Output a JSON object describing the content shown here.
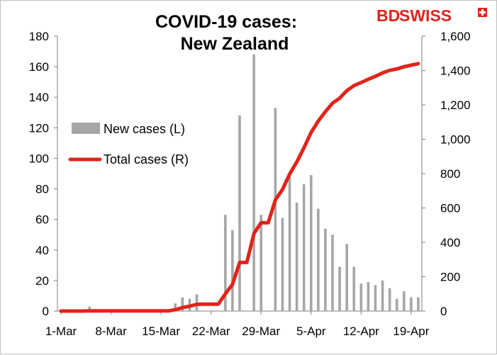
{
  "title_line1": "COVID-19 cases:",
  "title_line2": "New Zealand",
  "logo": {
    "bd": "BD",
    "swiss": "SWISS",
    "brand_color": "#e2231a"
  },
  "chart_data": {
    "type": "bar+line",
    "title": "COVID-19 cases: New Zealand",
    "x_tick_labels": [
      "1-Mar",
      "8-Mar",
      "15-Mar",
      "22-Mar",
      "29-Mar",
      "5-Apr",
      "12-Apr",
      "19-Apr"
    ],
    "x_dates": [
      "1-Mar",
      "2-Mar",
      "3-Mar",
      "4-Mar",
      "5-Mar",
      "6-Mar",
      "7-Mar",
      "8-Mar",
      "9-Mar",
      "10-Mar",
      "11-Mar",
      "12-Mar",
      "13-Mar",
      "14-Mar",
      "15-Mar",
      "16-Mar",
      "17-Mar",
      "18-Mar",
      "19-Mar",
      "20-Mar",
      "21-Mar",
      "22-Mar",
      "23-Mar",
      "24-Mar",
      "25-Mar",
      "26-Mar",
      "27-Mar",
      "28-Mar",
      "29-Mar",
      "30-Mar",
      "31-Mar",
      "1-Apr",
      "2-Apr",
      "3-Apr",
      "4-Apr",
      "5-Apr",
      "6-Apr",
      "7-Apr",
      "8-Apr",
      "9-Apr",
      "10-Apr",
      "11-Apr",
      "12-Apr",
      "13-Apr",
      "14-Apr",
      "15-Apr",
      "16-Apr",
      "17-Apr",
      "18-Apr",
      "19-Apr",
      "20-Apr"
    ],
    "left_axis": {
      "min": 0,
      "max": 180,
      "step": 20,
      "ticks": [
        "0",
        "20",
        "40",
        "60",
        "80",
        "100",
        "120",
        "140",
        "160",
        "180"
      ]
    },
    "right_axis": {
      "min": 0,
      "max": 1600,
      "step": 200,
      "ticks": [
        "0",
        "200",
        "400",
        "600",
        "800",
        "1,000",
        "1,200",
        "1,400",
        "1,600"
      ]
    },
    "legend_position": "left-center",
    "series": [
      {
        "name": "New cases (L)",
        "type": "bar",
        "axis": "left",
        "color": "#a6a6a6",
        "values": [
          0,
          0,
          0,
          1,
          3,
          0,
          0,
          0,
          0,
          0,
          0,
          0,
          0,
          0,
          0,
          0,
          5,
          9,
          8,
          11,
          0,
          0,
          0,
          63,
          53,
          128,
          0,
          168,
          63,
          0,
          133,
          61,
          89,
          71,
          83,
          89,
          67,
          54,
          50,
          29,
          44,
          29,
          18,
          19,
          17,
          20,
          15,
          8,
          13,
          9,
          9
        ]
      },
      {
        "name": "Total cases (R)",
        "type": "line",
        "axis": "right",
        "color": "#e2231a",
        "values": [
          0,
          0,
          0,
          0,
          1,
          1,
          1,
          1,
          1,
          1,
          1,
          1,
          1,
          1,
          1,
          1,
          8,
          20,
          28,
          39,
          40,
          40,
          40,
          100,
          155,
          283,
          283,
          451,
          514,
          514,
          647,
          708,
          797,
          868,
          950,
          1039,
          1106,
          1160,
          1210,
          1239,
          1283,
          1312,
          1330,
          1349,
          1366,
          1386,
          1401,
          1409,
          1422,
          1431,
          1440
        ]
      }
    ]
  }
}
